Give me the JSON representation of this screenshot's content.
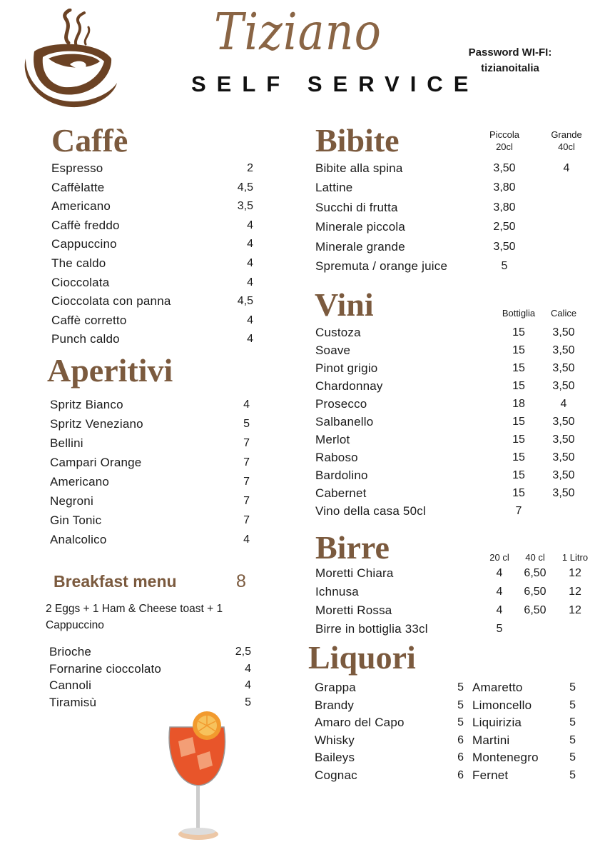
{
  "header": {
    "brand": "Tiziano",
    "subtitle": "SELF SERVICE",
    "wifi_label": "Password WI-FI:",
    "wifi_password": "tizianoitalia",
    "logo_icon": "coffee-cup-icon"
  },
  "colors": {
    "accent": "#7b5a3e",
    "text": "#1a1a1a"
  },
  "caffe": {
    "title": "Caffè",
    "items": [
      {
        "name": "Espresso",
        "price": "2"
      },
      {
        "name": "Caffèlatte",
        "price": "4,5"
      },
      {
        "name": "Americano",
        "price": "3,5"
      },
      {
        "name": "Caffè freddo",
        "price": "4"
      },
      {
        "name": "Cappuccino",
        "price": "4"
      },
      {
        "name": "The caldo",
        "price": "4"
      },
      {
        "name": "Cioccolata",
        "price": "4"
      },
      {
        "name": "Cioccolata con panna",
        "price": "4,5"
      },
      {
        "name": "Caffè corretto",
        "price": "4"
      },
      {
        "name": "Punch caldo",
        "price": "4"
      }
    ]
  },
  "aperitivi": {
    "title": "Aperitivi",
    "items": [
      {
        "name": "Spritz Bianco",
        "price": "4"
      },
      {
        "name": "Spritz Veneziano",
        "price": "5"
      },
      {
        "name": "Bellini",
        "price": "7"
      },
      {
        "name": "Campari Orange",
        "price": "7"
      },
      {
        "name": "Americano",
        "price": "7"
      },
      {
        "name": "Negroni",
        "price": "7"
      },
      {
        "name": "Gin Tonic",
        "price": "7"
      },
      {
        "name": "Analcolico",
        "price": "4"
      }
    ]
  },
  "breakfast": {
    "title": "Breakfast menu",
    "price": "8",
    "description": "2 Eggs + 1 Ham & Cheese toast + 1 Cappuccino",
    "items": [
      {
        "name": "Brioche",
        "price": "2,5"
      },
      {
        "name": "Fornarine cioccolato",
        "price": "4"
      },
      {
        "name": "Cannoli",
        "price": "4"
      },
      {
        "name": "Tiramisù",
        "price": "5"
      }
    ]
  },
  "bibite": {
    "title": "Bibite",
    "columns": [
      "Piccola 20cl",
      "Grande 40cl"
    ],
    "items": [
      {
        "name": "Bibite alla spina",
        "prices": [
          "3,50",
          "4"
        ]
      },
      {
        "name": "Lattine",
        "prices": [
          "3,80",
          ""
        ]
      },
      {
        "name": "Succhi di frutta",
        "prices": [
          "3,80",
          ""
        ]
      },
      {
        "name": "Minerale piccola",
        "prices": [
          "2,50",
          ""
        ]
      },
      {
        "name": "Minerale grande",
        "prices": [
          "3,50",
          ""
        ]
      },
      {
        "name": "Spremuta / orange juice",
        "prices": [
          "5",
          ""
        ]
      }
    ]
  },
  "vini": {
    "title": "Vini",
    "columns": [
      "Bottiglia",
      "Calice"
    ],
    "items": [
      {
        "name": "Custoza",
        "prices": [
          "15",
          "3,50"
        ]
      },
      {
        "name": "Soave",
        "prices": [
          "15",
          "3,50"
        ]
      },
      {
        "name": "Pinot grigio",
        "prices": [
          "15",
          "3,50"
        ]
      },
      {
        "name": "Chardonnay",
        "prices": [
          "15",
          "3,50"
        ]
      },
      {
        "name": "Prosecco",
        "prices": [
          "18",
          "4"
        ]
      },
      {
        "name": "Salbanello",
        "prices": [
          "15",
          "3,50"
        ]
      },
      {
        "name": "Merlot",
        "prices": [
          "15",
          "3,50"
        ]
      },
      {
        "name": "Raboso",
        "prices": [
          "15",
          "3,50"
        ]
      },
      {
        "name": "Bardolino",
        "prices": [
          "15",
          "3,50"
        ]
      },
      {
        "name": "Cabernet",
        "prices": [
          "15",
          "3,50"
        ]
      },
      {
        "name": "Vino della casa 50cl",
        "prices": [
          "7",
          ""
        ]
      }
    ]
  },
  "birre": {
    "title": "Birre",
    "columns": [
      "20 cl",
      "40 cl",
      "1 Litro"
    ],
    "items": [
      {
        "name": "Moretti Chiara",
        "prices": [
          "4",
          "6,50",
          "12"
        ]
      },
      {
        "name": "Ichnusa",
        "prices": [
          "4",
          "6,50",
          "12"
        ]
      },
      {
        "name": "Moretti  Rossa",
        "prices": [
          "4",
          "6,50",
          "12"
        ]
      },
      {
        "name": "Birre in bottiglia 33cl",
        "prices": [
          "5",
          "",
          ""
        ]
      }
    ]
  },
  "liquori": {
    "title": "Liquori",
    "left": [
      {
        "name": "Grappa",
        "price": "5"
      },
      {
        "name": "Brandy",
        "price": "5"
      },
      {
        "name": "Amaro del Capo",
        "price": "5"
      },
      {
        "name": "Whisky",
        "price": "6"
      },
      {
        "name": "Baileys",
        "price": "6"
      },
      {
        "name": "Cognac",
        "price": "6"
      }
    ],
    "right": [
      {
        "name": "Amaretto",
        "price": "5"
      },
      {
        "name": "Limoncello",
        "price": "5"
      },
      {
        "name": "Liquirizia",
        "price": "5"
      },
      {
        "name": "Martini",
        "price": "5"
      },
      {
        "name": "Montenegro",
        "price": "5"
      },
      {
        "name": "Fernet",
        "price": "5"
      }
    ]
  },
  "decor": {
    "drink_icon": "spritz-glass-icon"
  }
}
